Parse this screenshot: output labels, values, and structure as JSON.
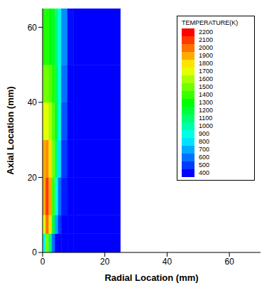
{
  "chart_data": {
    "type": "heatmap",
    "xlabel": "Radial Location (mm)",
    "ylabel": "Axial Location (mm)",
    "xlim": [
      0,
      70
    ],
    "xticks": [
      0,
      20,
      40,
      60
    ],
    "ylim": [
      0,
      65
    ],
    "yticks": [
      0,
      20,
      40,
      60
    ],
    "x_edges": [
      0,
      1,
      2,
      3,
      4,
      5,
      6,
      8,
      10,
      25
    ],
    "y_edges": [
      0,
      5,
      10,
      20,
      30,
      40,
      50,
      65
    ],
    "cells": [
      [
        900,
        1500,
        1100,
        600,
        400,
        400,
        400,
        400,
        400
      ],
      [
        1700,
        2000,
        1800,
        1200,
        700,
        500,
        400,
        400,
        400
      ],
      [
        1900,
        2100,
        1900,
        1400,
        900,
        600,
        450,
        400,
        400
      ],
      [
        1900,
        1950,
        1800,
        1500,
        1100,
        800,
        500,
        400,
        400
      ],
      [
        1700,
        1700,
        1600,
        1450,
        1200,
        900,
        550,
        400,
        400
      ],
      [
        1500,
        1500,
        1450,
        1350,
        1150,
        900,
        600,
        400,
        400
      ],
      [
        1350,
        1350,
        1300,
        1250,
        1100,
        900,
        650,
        420,
        400
      ]
    ],
    "colorbar": {
      "label": "TEMPERATURE(K)",
      "range": [
        400,
        2200
      ],
      "ticks": [
        2200,
        2100,
        2000,
        1900,
        1800,
        1700,
        1600,
        1500,
        1400,
        1300,
        1200,
        1100,
        1000,
        900,
        800,
        700,
        600,
        500,
        400
      ]
    },
    "legend": "upper right"
  }
}
